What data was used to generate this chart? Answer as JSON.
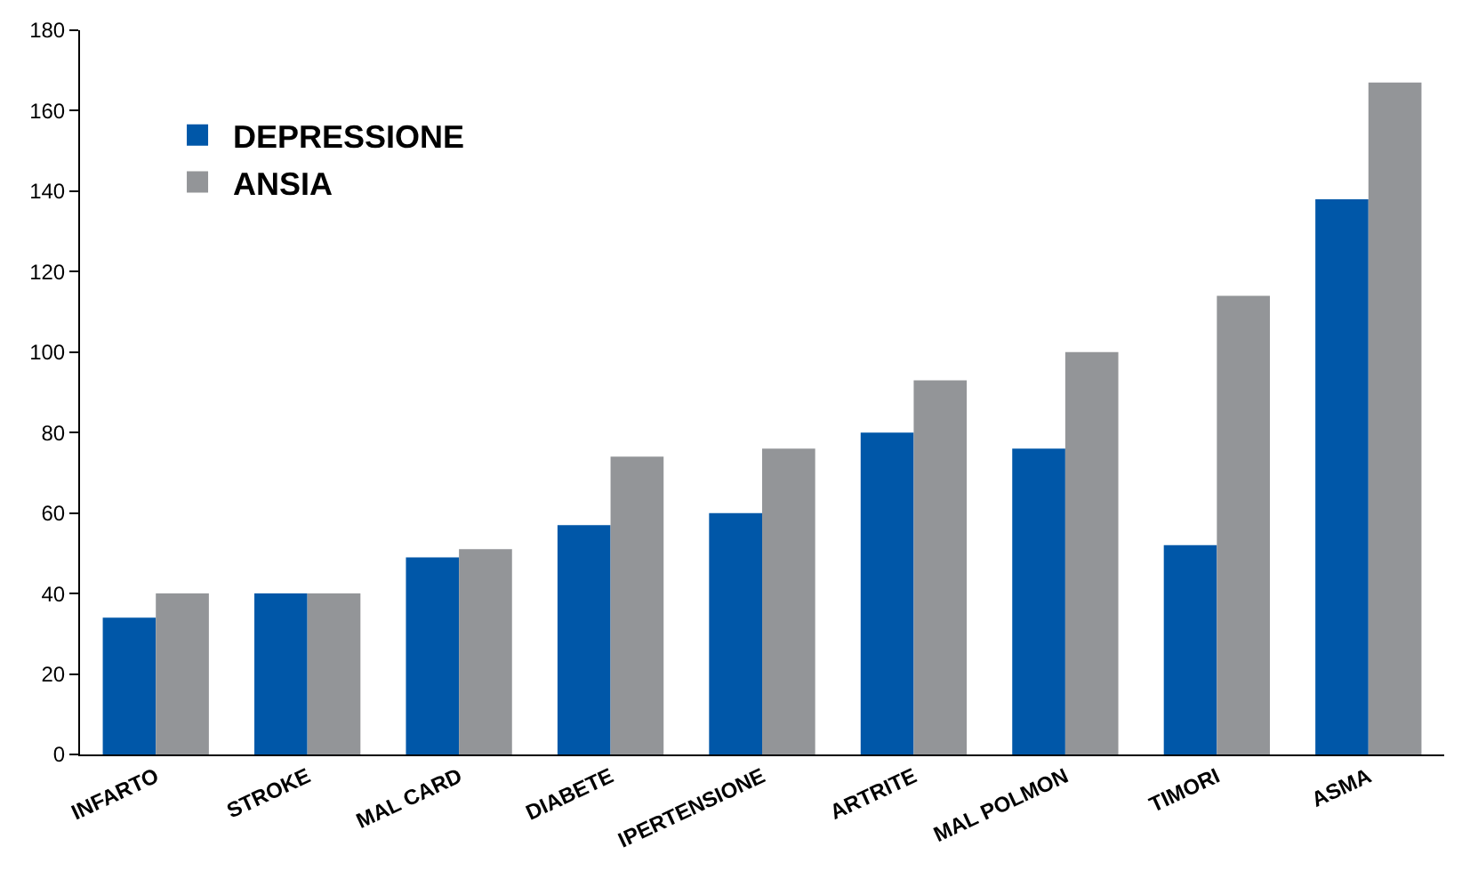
{
  "chart_data": {
    "type": "bar",
    "categories": [
      "INFARTO",
      "STROKE",
      "MAL CARD",
      "DIABETE",
      "IPERTENSIONE",
      "ARTRITE",
      "MAL POLMON",
      "TIMORI",
      "ASMA"
    ],
    "series": [
      {
        "name": "DEPRESSIONE",
        "color": "#0057a8",
        "values": [
          34,
          40,
          49,
          57,
          60,
          80,
          76,
          52,
          138
        ]
      },
      {
        "name": "ANSIA",
        "color": "#939598",
        "values": [
          40,
          40,
          51,
          74,
          76,
          93,
          100,
          114,
          167
        ]
      }
    ],
    "ylim": [
      0,
      180
    ],
    "yticks": [
      0,
      20,
      40,
      60,
      80,
      100,
      120,
      140,
      160,
      180
    ],
    "grid": false,
    "legend": "top left"
  }
}
